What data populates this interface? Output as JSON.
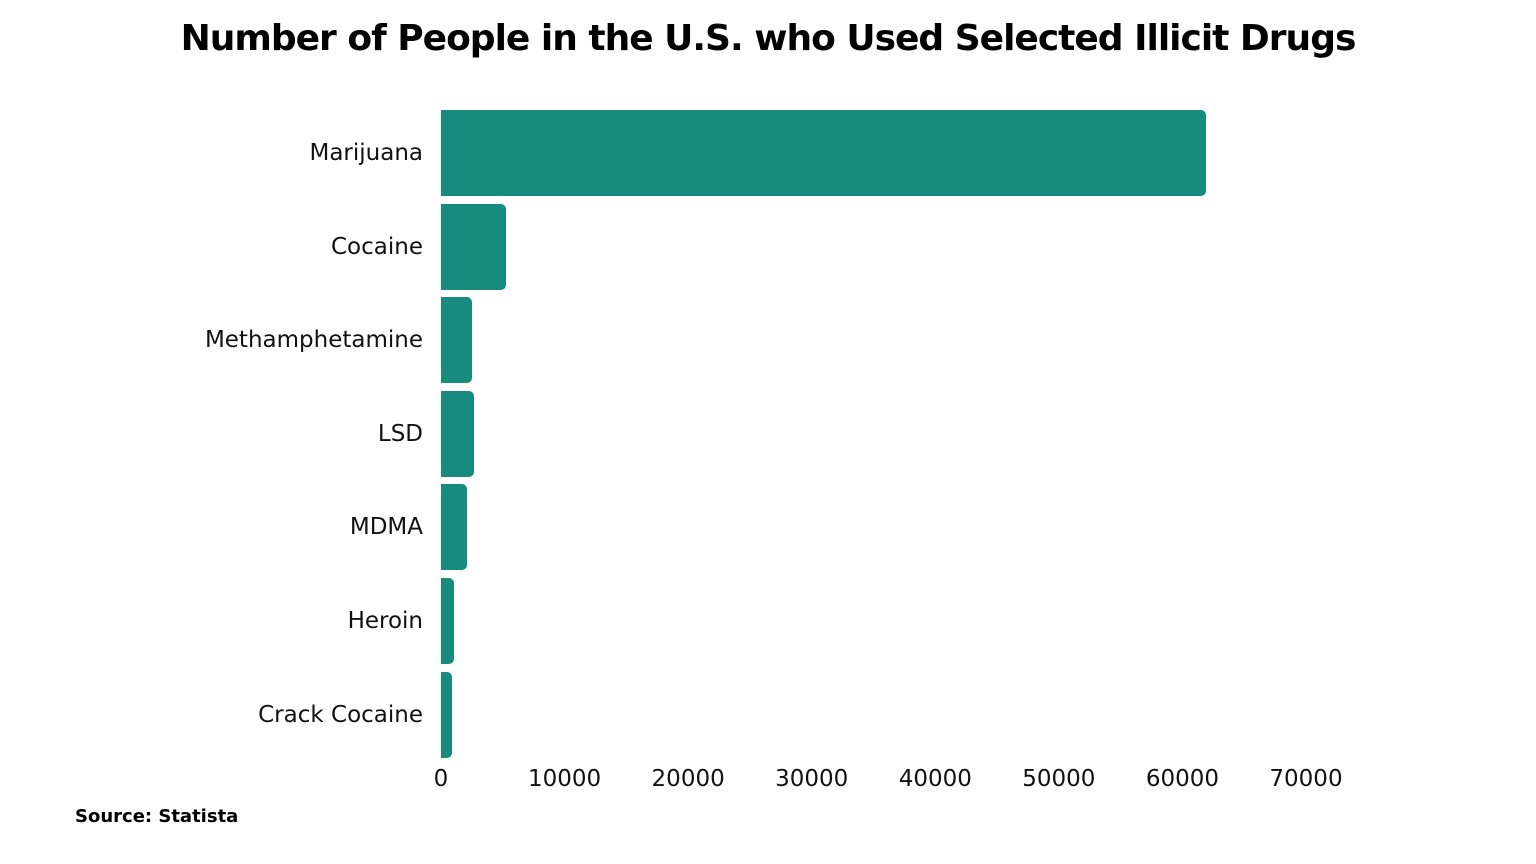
{
  "chart_data": {
    "type": "bar",
    "orientation": "horizontal",
    "title": "Number of People in the U.S. who Used Selected Illicit Drugs",
    "categories": [
      "Marijuana",
      "Cocaine",
      "Methamphetamine",
      "LSD",
      "MDMA",
      "Heroin",
      "Crack Cocaine"
    ],
    "values": [
      61900,
      5250,
      2500,
      2670,
      2100,
      1050,
      900
    ],
    "xlabel": "",
    "ylabel": "",
    "xlim": [
      0,
      70000
    ],
    "xticks": [
      "0",
      "10000",
      "20000",
      "30000",
      "40000",
      "50000",
      "60000",
      "70000"
    ],
    "grid": false,
    "legend": null,
    "bar_color": "#178b7e",
    "source": "Source: Statista"
  }
}
